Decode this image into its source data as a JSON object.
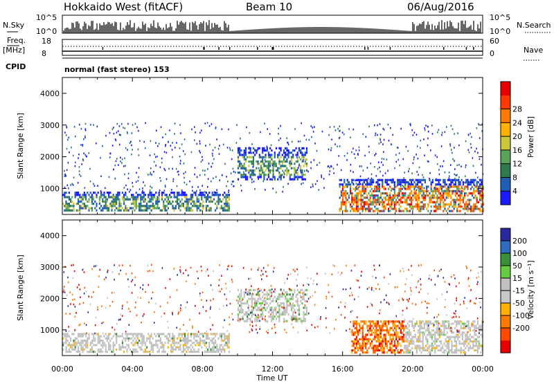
{
  "header": {
    "radar": "Hokkaido West (fitACF)",
    "beam": "Beam 10",
    "date": "06/Aug/2016"
  },
  "top_panels": {
    "nsky_label": "N.Sky",
    "nsky_ticks": [
      "10^5",
      "10^0"
    ],
    "nsearch_label": "N.Search",
    "nsearch_ticks": [
      "10^5",
      "10^0"
    ],
    "freq_label": "Freq.",
    "freq_unit": "[MHz]",
    "freq_ticks": [
      "18",
      "8"
    ],
    "nave_label": "Nave",
    "nave_ticks": [
      "60",
      "0"
    ],
    "cpid_label": "CPID",
    "cpid_value": "normal (fast stereo) 153"
  },
  "colors": {
    "power": [
      "#1a1aff",
      "#1e5fb4",
      "#2f7a4f",
      "#5aa35a",
      "#c8c83a",
      "#ffb000",
      "#ff7a00",
      "#ff3a00",
      "#e60000"
    ],
    "velocity": [
      "#2a2aa0",
      "#2f6cc0",
      "#3a8f3a",
      "#66cc44",
      "#c0c0c0",
      "#c8c8c8",
      "#ffb000",
      "#ff7a00",
      "#ff4a00",
      "#e60000"
    ]
  },
  "chart_data": [
    {
      "type": "heatmap",
      "title": "Power",
      "xlabel": "",
      "ylabel": "Slant Range [km]",
      "xlim": [
        "00:00",
        "24:00"
      ],
      "ylim": [
        180,
        4500
      ],
      "y_ticks": [
        1000,
        2000,
        3000,
        4000
      ],
      "y_tick_labels": [
        "1000",
        "2000",
        "3000",
        "4000"
      ],
      "colorbar": {
        "label": "Power [dB]",
        "range": [
          0,
          32
        ],
        "ticks": [
          4,
          8,
          12,
          16,
          20,
          24,
          28
        ],
        "tick_labels": [
          "4",
          "8",
          "12",
          "16",
          "20",
          "24",
          "28"
        ]
      },
      "echo_regions": [
        {
          "t_start": 0.0,
          "t_end": 9.5,
          "r_min": 300,
          "r_max": 900,
          "level": "4-20 dB"
        },
        {
          "t_start": 10.0,
          "t_end": 14.0,
          "r_min": 1300,
          "r_max": 2300,
          "level": "4-20 dB"
        },
        {
          "t_start": 15.8,
          "t_end": 24.0,
          "r_min": 300,
          "r_max": 1300,
          "level": "4-28 dB"
        }
      ]
    },
    {
      "type": "heatmap",
      "title": "Velocity",
      "xlabel": "Time UT",
      "ylabel": "Slant Range [km]",
      "xlim": [
        "00:00",
        "24:00"
      ],
      "ylim": [
        180,
        4500
      ],
      "x_tick_labels": [
        "00:00",
        "04:00",
        "08:00",
        "12:00",
        "16:00",
        "20:00",
        "00:00"
      ],
      "y_ticks": [
        1000,
        2000,
        3000,
        4000
      ],
      "y_tick_labels": [
        "1000",
        "2000",
        "3000",
        "4000"
      ],
      "colorbar": {
        "label": "Velocity [m s⁻¹]",
        "range": [
          -250,
          250
        ],
        "ticks": [
          200,
          100,
          50,
          15,
          -15,
          -50,
          -100,
          -200
        ],
        "tick_labels": [
          "200",
          "100",
          "50",
          "15",
          "-15",
          "-50",
          "-100",
          "-200"
        ]
      },
      "echo_regions": [
        {
          "t_start": 0.0,
          "t_end": 9.5,
          "r_min": 300,
          "r_max": 900,
          "level": "-15 to 15 m/s (ground scatter)"
        },
        {
          "t_start": 10.0,
          "t_end": 14.0,
          "r_min": 1300,
          "r_max": 2300,
          "level": "-15 to 50 m/s"
        },
        {
          "t_start": 16.5,
          "t_end": 19.5,
          "r_min": 300,
          "r_max": 1300,
          "level": "-50 to -200 m/s"
        },
        {
          "t_start": 19.5,
          "t_end": 24.0,
          "r_min": 300,
          "r_max": 1300,
          "level": "-15 to 15 m/s"
        }
      ]
    }
  ]
}
